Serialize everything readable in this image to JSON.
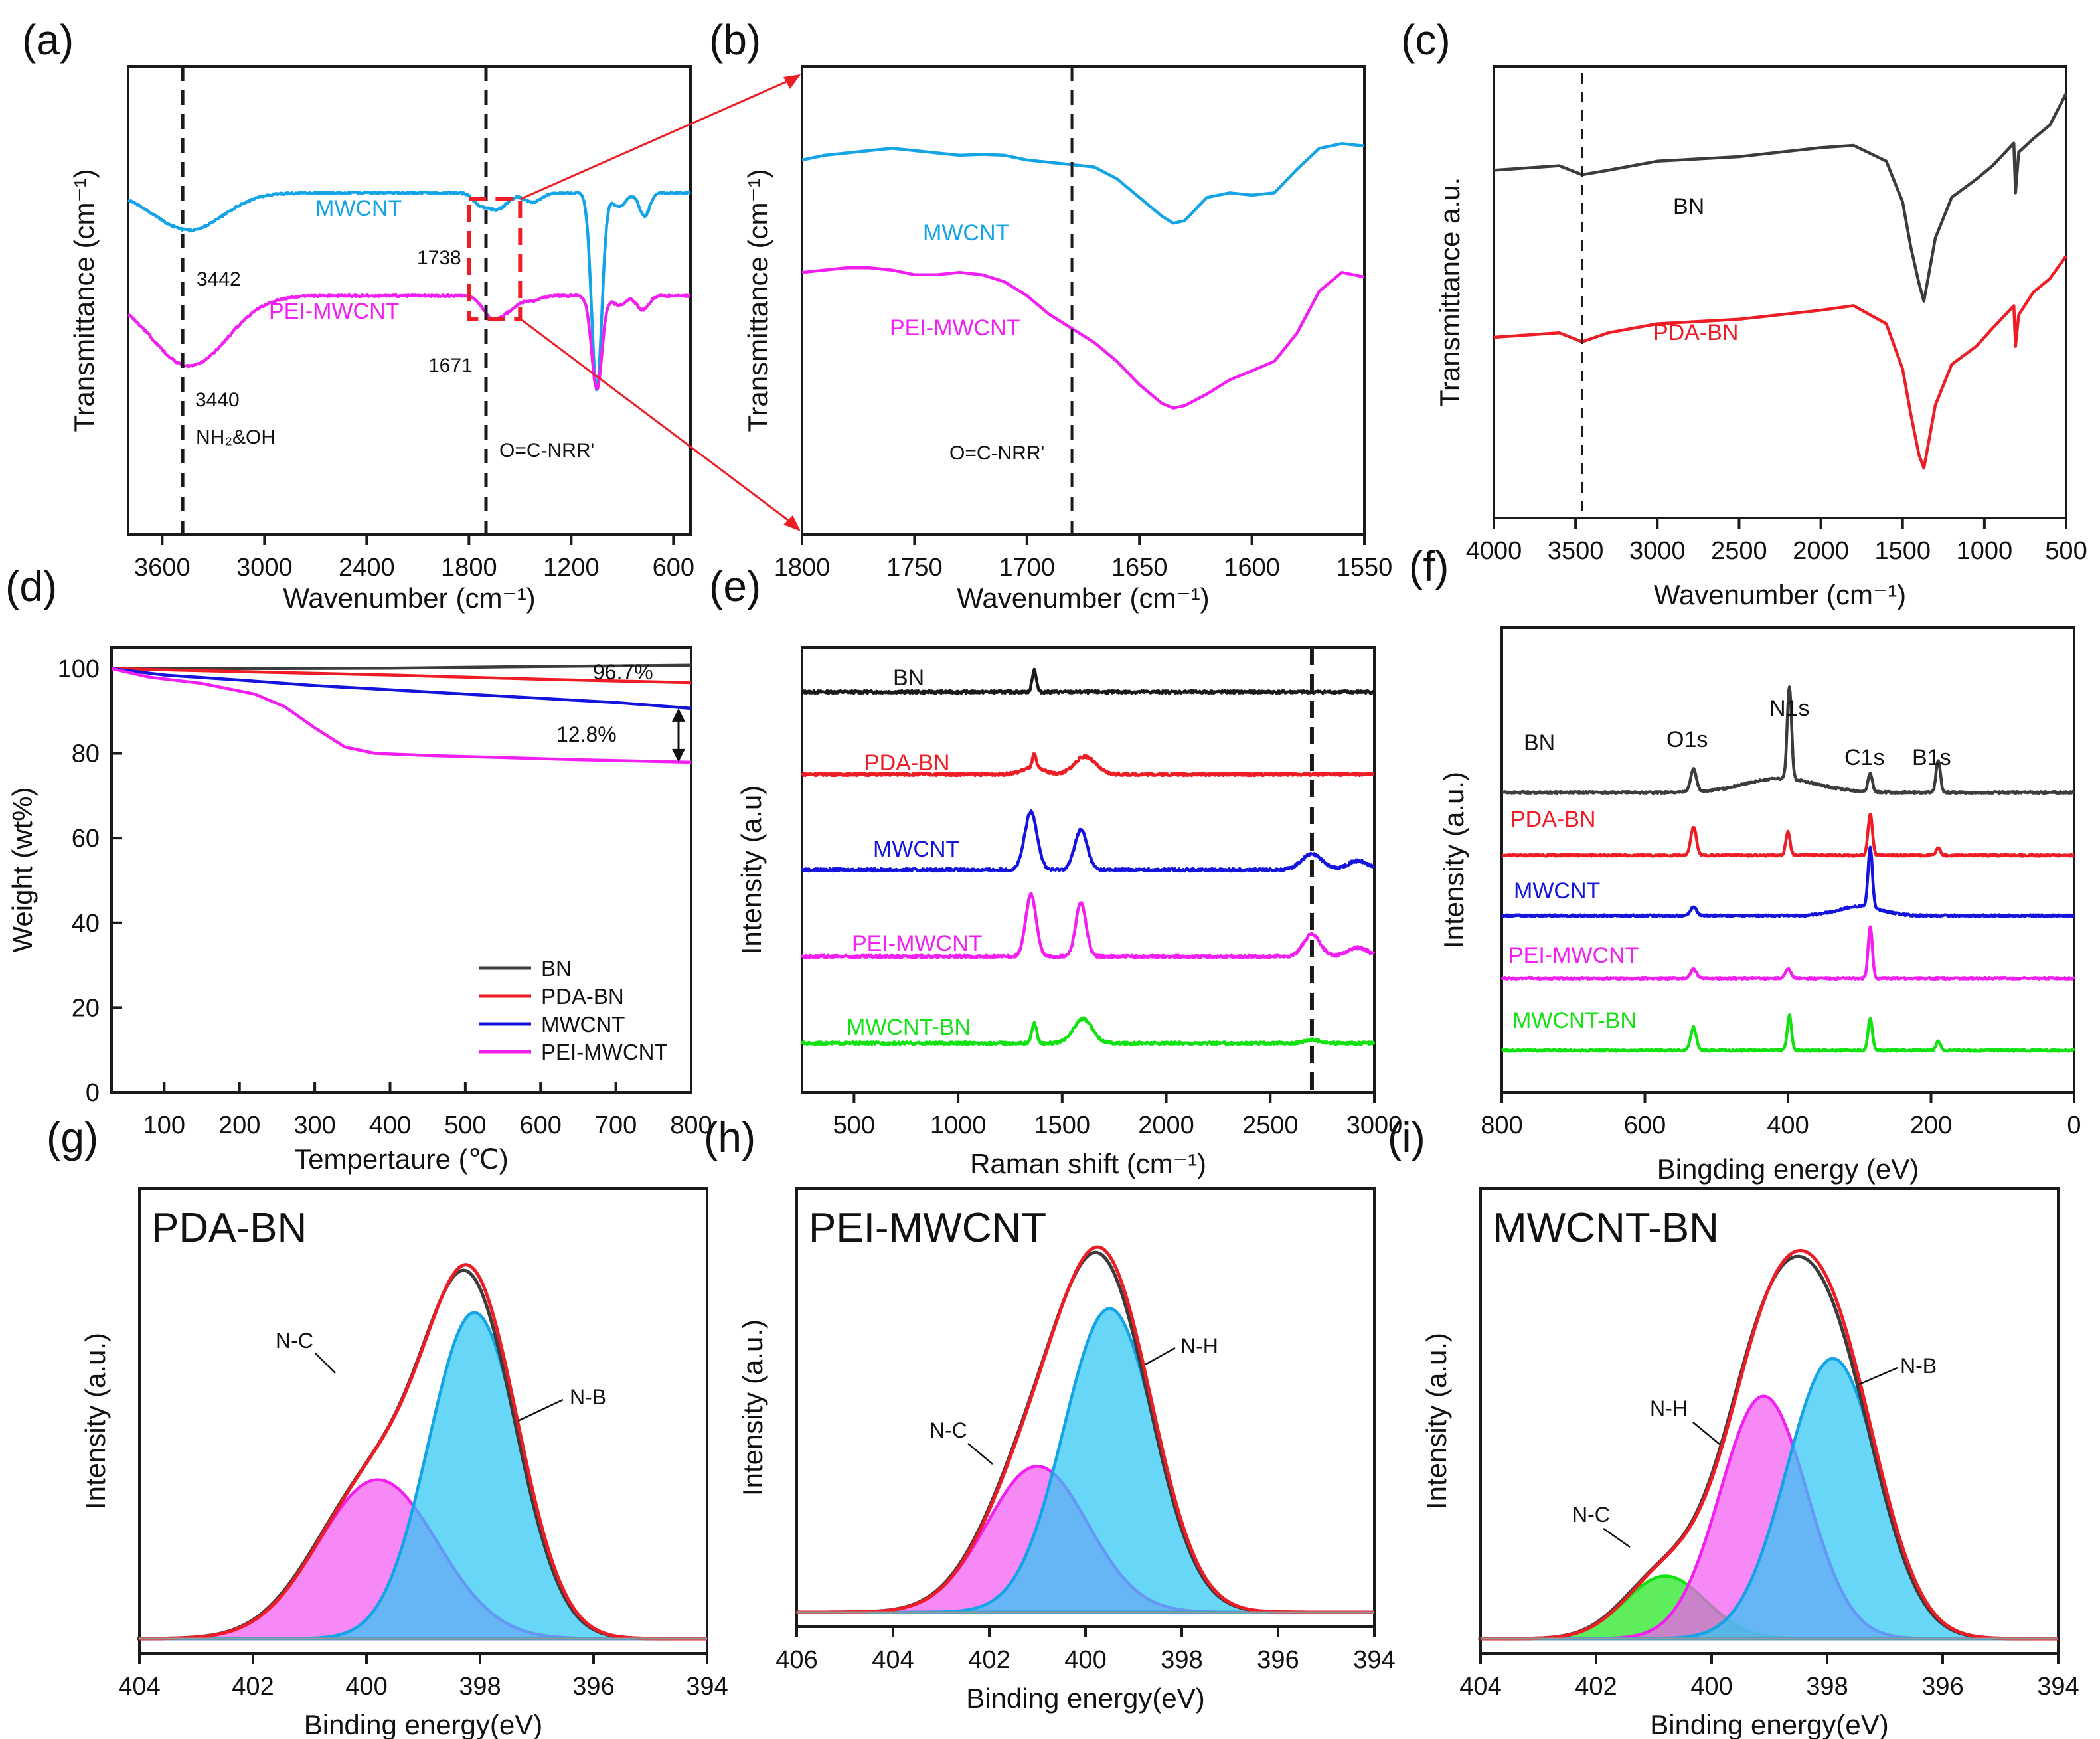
{
  "colors": {
    "black": "#1a1a1a",
    "gray": "#3c3c3c",
    "red": "#ee1c24",
    "blue": "#1414dc",
    "cyan": "#12a4e6",
    "magenta": "#f21ef2",
    "green": "#12e212",
    "fill_cyan": "#2ec6f4",
    "fill_magenta": "#f25cf2",
    "fill_green": "#1ee61e"
  },
  "chart_data": [
    {
      "id": "a",
      "panel_label": "(a)",
      "type": "line",
      "xlabel": "Wavenumber",
      "xunit": "(cm⁻¹)",
      "ylabel": "Transmittance (cm⁻¹)",
      "xlim": [
        3800,
        500
      ],
      "xreversed": true,
      "xticks": [
        3600,
        3000,
        2400,
        1800,
        1200,
        600
      ],
      "xtick_labels": [
        "3600",
        "3000",
        "2400",
        "1800",
        "1200",
        "600"
      ],
      "series": [
        {
          "name": "MWCNT",
          "color": "cyan",
          "baseline": 0.73,
          "peaks": [
            [
              3442,
              0.08,
              200
            ],
            [
              1738,
              0.02,
              40
            ],
            [
              1635,
              0.035,
              60
            ],
            [
              1050,
              0.42,
              30
            ],
            [
              1430,
              0.02,
              50
            ],
            [
              920,
              0.03,
              40
            ],
            [
              770,
              0.05,
              30
            ]
          ]
        },
        {
          "name": "PEI-MWCNT",
          "color": "magenta",
          "baseline": 0.51,
          "peaks": [
            [
              3440,
              0.15,
              220
            ],
            [
              1671,
              0.04,
              50
            ],
            [
              1580,
              0.03,
              60
            ],
            [
              1050,
              0.2,
              30
            ],
            [
              1430,
              0.01,
              50
            ],
            [
              920,
              0.02,
              40
            ],
            [
              780,
              0.03,
              35
            ]
          ]
        }
      ],
      "vlines": [
        3480,
        1700
      ],
      "annotations": {
        "p3442": "3442",
        "p3440": "3440",
        "p1738": "1738",
        "p1671": "1671",
        "nh": "NH₂&OH",
        "amide": "O=C-NRR'",
        "series_label_1": "MWCNT",
        "series_label_2": "PEI-MWCNT"
      }
    },
    {
      "id": "b",
      "panel_label": "(b)",
      "type": "line",
      "xlabel": "Wavenumber",
      "xunit": "(cm⁻¹)",
      "ylabel": "Transmittance (cm⁻¹)",
      "xlim": [
        1800,
        1550
      ],
      "xreversed": true,
      "xticks": [
        1800,
        1750,
        1700,
        1650,
        1600,
        1550
      ],
      "xtick_labels": [
        "1800",
        "1750",
        "1700",
        "1650",
        "1600",
        "1550"
      ],
      "series": [
        {
          "name": "MWCNT",
          "color": "cyan",
          "x": [
            1800,
            1790,
            1780,
            1770,
            1760,
            1750,
            1740,
            1730,
            1720,
            1710,
            1700,
            1690,
            1680,
            1670,
            1660,
            1650,
            1640,
            1635,
            1630,
            1620,
            1610,
            1600,
            1590,
            1580,
            1570,
            1560,
            1550
          ],
          "values": [
            0.8,
            0.81,
            0.815,
            0.82,
            0.825,
            0.82,
            0.815,
            0.81,
            0.812,
            0.81,
            0.8,
            0.795,
            0.79,
            0.785,
            0.76,
            0.72,
            0.68,
            0.665,
            0.67,
            0.72,
            0.73,
            0.725,
            0.73,
            0.78,
            0.825,
            0.835,
            0.83
          ]
        },
        {
          "name": "PEI-MWCNT",
          "color": "magenta",
          "x": [
            1800,
            1790,
            1780,
            1770,
            1760,
            1750,
            1740,
            1730,
            1720,
            1710,
            1700,
            1690,
            1680,
            1670,
            1660,
            1650,
            1640,
            1635,
            1630,
            1620,
            1610,
            1600,
            1590,
            1580,
            1570,
            1560,
            1550
          ],
          "values": [
            0.56,
            0.565,
            0.57,
            0.57,
            0.565,
            0.555,
            0.555,
            0.56,
            0.555,
            0.54,
            0.51,
            0.47,
            0.44,
            0.41,
            0.37,
            0.32,
            0.28,
            0.27,
            0.275,
            0.3,
            0.33,
            0.35,
            0.37,
            0.43,
            0.52,
            0.56,
            0.55
          ]
        }
      ],
      "vlines": [
        1680
      ],
      "annotations": {
        "amide": "O=C-NRR'",
        "series_label_1": "MWCNT",
        "series_label_2": "PEI-MWCNT"
      }
    },
    {
      "id": "c",
      "panel_label": "(c)",
      "type": "line",
      "xlabel": "Wavenumber",
      "xunit": "(cm⁻¹)",
      "ylabel": "Transmittance a.u.",
      "xlim": [
        4000,
        500
      ],
      "xreversed": true,
      "xticks": [
        4000,
        3500,
        3000,
        2500,
        2000,
        1500,
        1000,
        500
      ],
      "xtick_labels": [
        "4000",
        "3500",
        "3000",
        "2500",
        "2000",
        "1500",
        "1000",
        "500"
      ],
      "series": [
        {
          "name": "BN",
          "color": "gray",
          "x": [
            4000,
            3600,
            3460,
            3300,
            3000,
            2500,
            2000,
            1800,
            1600,
            1500,
            1450,
            1400,
            1370,
            1350,
            1300,
            1200,
            1050,
            950,
            820,
            810,
            790,
            700,
            600,
            500
          ],
          "values": [
            0.77,
            0.78,
            0.76,
            0.77,
            0.79,
            0.8,
            0.82,
            0.825,
            0.79,
            0.7,
            0.6,
            0.52,
            0.48,
            0.52,
            0.62,
            0.71,
            0.75,
            0.78,
            0.83,
            0.72,
            0.81,
            0.84,
            0.87,
            0.94
          ]
        },
        {
          "name": "PDA-BN",
          "color": "red",
          "x": [
            4000,
            3600,
            3460,
            3300,
            3000,
            2500,
            2000,
            1800,
            1600,
            1500,
            1450,
            1400,
            1370,
            1350,
            1300,
            1200,
            1050,
            950,
            820,
            810,
            790,
            700,
            600,
            500
          ],
          "values": [
            0.4,
            0.41,
            0.39,
            0.41,
            0.43,
            0.44,
            0.46,
            0.47,
            0.43,
            0.33,
            0.23,
            0.14,
            0.11,
            0.15,
            0.25,
            0.34,
            0.38,
            0.42,
            0.47,
            0.38,
            0.45,
            0.5,
            0.53,
            0.58
          ]
        }
      ],
      "vlines": [
        3460
      ],
      "annotations": {
        "series_label_1": "BN",
        "series_label_2": "PDA-BN"
      }
    },
    {
      "id": "d",
      "panel_label": "(d)",
      "type": "line",
      "xlabel": "Tempertaure (℃)",
      "ylabel": "Weight  (wt%)",
      "xlim": [
        30,
        800
      ],
      "ylim": [
        0,
        105
      ],
      "xticks": [
        100,
        200,
        300,
        400,
        500,
        600,
        700,
        800
      ],
      "xtick_labels": [
        "100",
        "200",
        "300",
        "400",
        "500",
        "600",
        "700",
        "800"
      ],
      "yticks": [
        0,
        20,
        40,
        60,
        80,
        100
      ],
      "ytick_labels": [
        "0",
        "20",
        "40",
        "60",
        "80",
        "100"
      ],
      "series": [
        {
          "name": "BN",
          "color": "gray",
          "x": [
            30,
            200,
            400,
            600,
            800
          ],
          "values": [
            100,
            100,
            100.1,
            100.5,
            100.8
          ]
        },
        {
          "name": "PDA-BN",
          "color": "red",
          "x": [
            30,
            200,
            400,
            600,
            800
          ],
          "values": [
            100,
            99.3,
            98.5,
            97.5,
            96.7
          ]
        },
        {
          "name": "MWCNT",
          "color": "blue",
          "x": [
            30,
            100,
            200,
            300,
            400,
            500,
            600,
            700,
            800
          ],
          "values": [
            100,
            98.5,
            97.3,
            96,
            95,
            94,
            93,
            92,
            90.6
          ]
        },
        {
          "name": "PEI-MWCNT",
          "color": "magenta",
          "x": [
            30,
            80,
            150,
            220,
            260,
            300,
            340,
            380,
            450,
            550,
            650,
            800
          ],
          "values": [
            100,
            98,
            96.5,
            94,
            91,
            86,
            81.5,
            80,
            79.5,
            79,
            78.5,
            77.9
          ]
        }
      ],
      "annotations": {
        "a967": "96.7%",
        "a128": "12.8%"
      },
      "legend": [
        "BN",
        "PDA-BN",
        "MWCNT",
        "PEI-MWCNT"
      ]
    },
    {
      "id": "e",
      "panel_label": "(e)",
      "type": "line",
      "xlabel": "Raman shift (cm⁻¹)",
      "ylabel": "Intensity (a.u)",
      "xlim": [
        250,
        3000
      ],
      "xticks": [
        500,
        1000,
        1500,
        2000,
        2500,
        3000
      ],
      "xtick_labels": [
        "500",
        "1000",
        "1500",
        "2000",
        "2500",
        "3000"
      ],
      "series": [
        {
          "name": "BN",
          "color": "black",
          "offset": 0.9,
          "peaks": [
            [
              1366,
              0.05,
              10
            ]
          ]
        },
        {
          "name": "PDA-BN",
          "color": "red",
          "offset": 0.715,
          "peaks": [
            [
              1366,
              0.03,
              9
            ],
            [
              1610,
              0.04,
              50
            ],
            [
              1360,
              0.015,
              50
            ]
          ]
        },
        {
          "name": "MWCNT",
          "color": "blue",
          "offset": 0.5,
          "peaks": [
            [
              1350,
              0.13,
              30
            ],
            [
              1590,
              0.09,
              30
            ],
            [
              2700,
              0.035,
              50
            ],
            [
              2920,
              0.02,
              50
            ]
          ]
        },
        {
          "name": "PEI-MWCNT",
          "color": "magenta",
          "offset": 0.305,
          "peaks": [
            [
              1350,
              0.14,
              25
            ],
            [
              1590,
              0.12,
              25
            ],
            [
              2700,
              0.05,
              40
            ],
            [
              2920,
              0.02,
              50
            ]
          ]
        },
        {
          "name": "MWCNT-BN",
          "color": "green",
          "offset": 0.11,
          "peaks": [
            [
              1366,
              0.045,
              12
            ],
            [
              1600,
              0.055,
              45
            ],
            [
              2700,
              0.008,
              40
            ]
          ]
        }
      ],
      "vlines": [
        2700
      ]
    },
    {
      "id": "f",
      "panel_label": "(f)",
      "type": "line",
      "xlabel": "Bingding energy (eV)",
      "ylabel": "Intensity (a.u.)",
      "xlim": [
        800,
        0
      ],
      "xreversed": true,
      "xticks": [
        800,
        600,
        400,
        200,
        0
      ],
      "xtick_labels": [
        "800",
        "600",
        "400",
        "200",
        "0"
      ],
      "series": [
        {
          "name": "BN",
          "color": "gray",
          "offset": 0.645,
          "peaks": [
            [
              532,
              0.05,
              4
            ],
            [
              398,
              0.2,
              3
            ],
            [
              285,
              0.04,
              3
            ],
            [
              190,
              0.07,
              3
            ],
            [
              410,
              0.03,
              50
            ]
          ]
        },
        {
          "name": "PDA-BN",
          "color": "red",
          "offset": 0.51,
          "peaks": [
            [
              532,
              0.06,
              4
            ],
            [
              400,
              0.05,
              3
            ],
            [
              285,
              0.09,
              3
            ],
            [
              190,
              0.015,
              3
            ]
          ]
        },
        {
          "name": "MWCNT",
          "color": "blue",
          "offset": 0.38,
          "peaks": [
            [
              532,
              0.02,
              4
            ],
            [
              285,
              0.13,
              3
            ],
            [
              300,
              0.02,
              30
            ]
          ]
        },
        {
          "name": "PEI-MWCNT",
          "color": "magenta",
          "offset": 0.245,
          "peaks": [
            [
              532,
              0.02,
              4
            ],
            [
              400,
              0.02,
              4
            ],
            [
              285,
              0.11,
              3
            ]
          ]
        },
        {
          "name": "MWCNT-BN",
          "color": "green",
          "offset": 0.09,
          "peaks": [
            [
              532,
              0.05,
              4
            ],
            [
              398,
              0.075,
              3
            ],
            [
              285,
              0.07,
              3
            ],
            [
              190,
              0.02,
              3
            ]
          ]
        }
      ],
      "annotations": {
        "o1s": "O1s",
        "n1s": "N1s",
        "c1s": "C1s",
        "b1s": "B1s"
      }
    },
    {
      "id": "g",
      "panel_label": "(g)",
      "type": "area",
      "title": "PDA-BN",
      "xlabel": "Binding energy(eV)",
      "ylabel": "Intensity (a.u.)",
      "xlim": [
        404,
        394
      ],
      "xreversed": true,
      "xticks": [
        404,
        402,
        400,
        398,
        396,
        394
      ],
      "xtick_labels": [
        "404",
        "402",
        "400",
        "398",
        "396",
        "394"
      ],
      "components": [
        {
          "name": "N-C",
          "center": 399.8,
          "height": 0.38,
          "sigma": 1.05,
          "fill": "fill_magenta",
          "edge": "magenta"
        },
        {
          "name": "N-B",
          "center": 398.1,
          "height": 0.78,
          "sigma": 0.8,
          "fill": "fill_cyan",
          "edge": "cyan"
        }
      ],
      "baseline": 0.0
    },
    {
      "id": "h",
      "panel_label": "(h)",
      "type": "area",
      "title": "PEI-MWCNT",
      "xlabel": "Binding energy(eV)",
      "ylabel": "Intensity (a.u.)",
      "xlim": [
        406,
        394
      ],
      "xreversed": true,
      "xticks": [
        406,
        404,
        402,
        400,
        398,
        396,
        394
      ],
      "xtick_labels": [
        "406",
        "404",
        "402",
        "400",
        "398",
        "396",
        "394"
      ],
      "components": [
        {
          "name": "N-C",
          "center": 401.0,
          "height": 0.37,
          "sigma": 1.05,
          "fill": "fill_magenta",
          "edge": "magenta"
        },
        {
          "name": "N-H",
          "center": 399.5,
          "height": 0.77,
          "sigma": 0.95,
          "fill": "fill_cyan",
          "edge": "cyan"
        }
      ],
      "baseline": 0.0
    },
    {
      "id": "i",
      "panel_label": "(i)",
      "type": "area",
      "title": "MWCNT-BN",
      "xlabel": "Binding energy(eV)",
      "ylabel": "Intensity (a.u.)",
      "xlim": [
        404,
        394
      ],
      "xreversed": true,
      "xticks": [
        404,
        402,
        400,
        398,
        396,
        394
      ],
      "xtick_labels": [
        "404",
        "402",
        "400",
        "398",
        "396",
        "394"
      ],
      "components": [
        {
          "name": "N-C",
          "center": 400.8,
          "height": 0.15,
          "sigma": 0.7,
          "fill": "fill_green",
          "edge": "green"
        },
        {
          "name": "N-H",
          "center": 399.1,
          "height": 0.58,
          "sigma": 0.75,
          "fill": "fill_magenta",
          "edge": "magenta"
        },
        {
          "name": "N-B",
          "center": 397.9,
          "height": 0.67,
          "sigma": 0.8,
          "fill": "fill_cyan",
          "edge": "cyan"
        }
      ],
      "baseline": 0.0
    }
  ]
}
